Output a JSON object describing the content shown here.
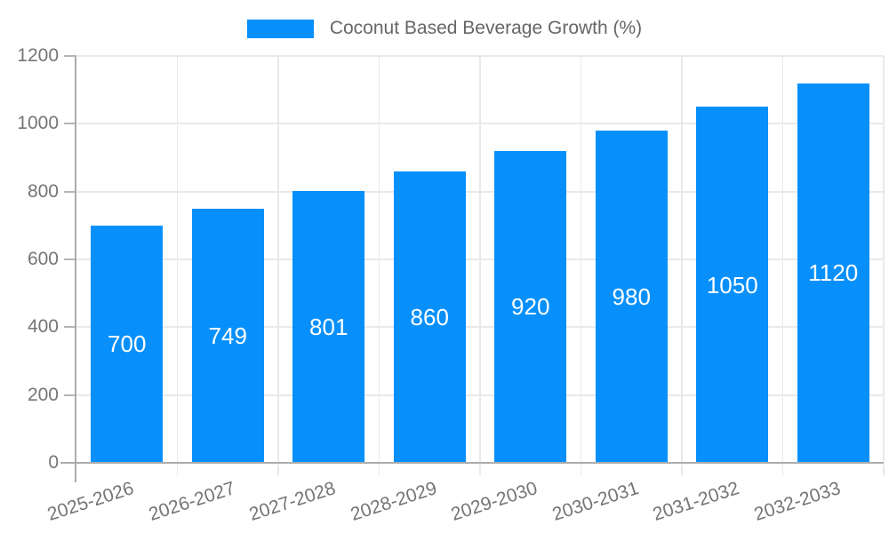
{
  "legend": {
    "label": "Coconut Based Beverage Growth (%)"
  },
  "chart_data": {
    "type": "bar",
    "title": "Coconut Based Beverage Growth (%)",
    "categories": [
      "2025-2026",
      "2026-2027",
      "2027-2028",
      "2028-2029",
      "2029-2030",
      "2030-2031",
      "2031-2032",
      "2032-2033"
    ],
    "values": [
      700,
      749,
      801,
      860,
      920,
      980,
      1050,
      1120
    ],
    "value_labels": [
      "700",
      "749",
      "801",
      "860",
      "920",
      "980",
      "1050",
      "1120"
    ],
    "xlabel": "",
    "ylabel": "",
    "ylim": [
      0,
      1200
    ],
    "yticks": [
      0,
      200,
      400,
      600,
      800,
      1000,
      1200
    ],
    "grid": true,
    "legend_position": "top-center",
    "x_tick_rotation_deg": -18,
    "colors": {
      "bar": "#0790FB",
      "value_label": "#FFFFFF",
      "axis_line": "#ACACAC",
      "tick_line": "#B5B5B5",
      "grid_line": "#E9E9E9",
      "tick_label": "#757575",
      "legend_text": "#666666",
      "background": "#FFFFFF"
    }
  }
}
